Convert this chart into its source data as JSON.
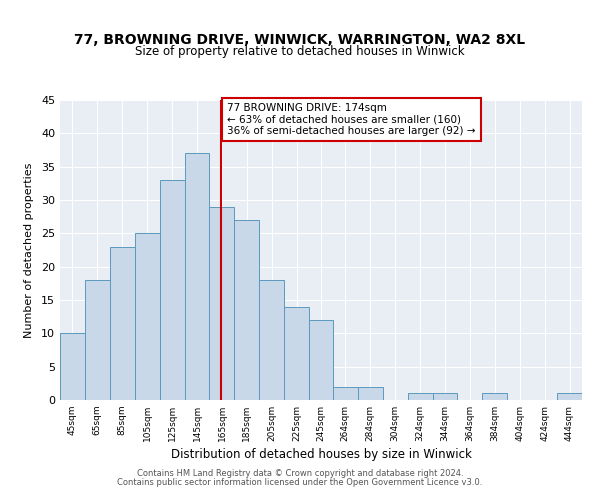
{
  "title1": "77, BROWNING DRIVE, WINWICK, WARRINGTON, WA2 8XL",
  "title2": "Size of property relative to detached houses in Winwick",
  "xlabel": "Distribution of detached houses by size in Winwick",
  "ylabel": "Number of detached properties",
  "bin_labels": [
    "45sqm",
    "65sqm",
    "85sqm",
    "105sqm",
    "125sqm",
    "145sqm",
    "165sqm",
    "185sqm",
    "205sqm",
    "225sqm",
    "245sqm",
    "264sqm",
    "284sqm",
    "304sqm",
    "324sqm",
    "344sqm",
    "364sqm",
    "384sqm",
    "404sqm",
    "424sqm",
    "444sqm"
  ],
  "bin_centers": [
    55,
    75,
    95,
    115,
    135,
    155,
    175,
    195,
    215,
    235,
    254.5,
    274,
    294,
    314,
    334,
    354,
    374,
    394,
    414,
    434,
    454
  ],
  "bin_lefts": [
    45,
    65,
    85,
    105,
    125,
    145,
    165,
    185,
    205,
    225,
    245,
    264,
    284,
    304,
    324,
    344,
    364,
    384,
    404,
    424,
    444
  ],
  "bin_widths": [
    20,
    20,
    20,
    20,
    20,
    20,
    20,
    20,
    20,
    20,
    19,
    20,
    20,
    20,
    20,
    20,
    20,
    20,
    20,
    20,
    20
  ],
  "heights": [
    10,
    18,
    23,
    25,
    33,
    37,
    29,
    27,
    18,
    14,
    12,
    2,
    2,
    0,
    1,
    1,
    0,
    1,
    0,
    0,
    1
  ],
  "bar_facecolor": "#c8d8e8",
  "bar_edgecolor": "#5a9abe",
  "property_line_x": 174,
  "property_line_color": "#cc0000",
  "annotation_title": "77 BROWNING DRIVE: 174sqm",
  "annotation_line1": "← 63% of detached houses are smaller (160)",
  "annotation_line2": "36% of semi-detached houses are larger (92) →",
  "annotation_box_edgecolor": "#cc0000",
  "annotation_box_facecolor": "#ffffff",
  "ylim": [
    0,
    45
  ],
  "yticks": [
    0,
    5,
    10,
    15,
    20,
    25,
    30,
    35,
    40,
    45
  ],
  "bg_color": "#e8eef4",
  "xlim_left": 45,
  "xlim_right": 464,
  "footer1": "Contains HM Land Registry data © Crown copyright and database right 2024.",
  "footer2": "Contains public sector information licensed under the Open Government Licence v3.0."
}
